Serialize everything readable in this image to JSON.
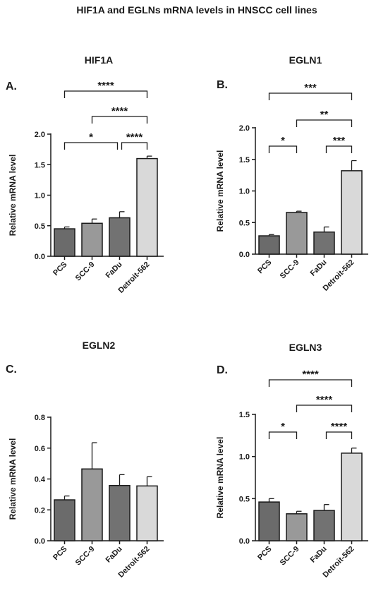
{
  "figure_title": "HIF1A and EGLNs mRNA levels in HNSCC cell lines",
  "colors": {
    "PCS": "#6b6b6b",
    "SCC-9": "#999999",
    "FaDu": "#727272",
    "Detroit-562": "#d9d9d9"
  },
  "chart_data": [
    {
      "type": "bar",
      "panel": "A.",
      "title": "HIF1A",
      "ylabel": "Relative mRNA level",
      "categories": [
        "PCS",
        "SCC-9",
        "FaDu",
        "Detroit-562"
      ],
      "values": [
        0.45,
        0.54,
        0.63,
        1.6
      ],
      "errors": [
        0.03,
        0.07,
        0.1,
        0.04
      ],
      "ylim": [
        0,
        2.0
      ],
      "yticks": [
        "0.0",
        "0.5",
        "1.0",
        "1.5",
        "2.0"
      ],
      "significance": [
        {
          "from": 0,
          "to": 3,
          "label": "****"
        },
        {
          "from": 1,
          "to": 3,
          "label": "****"
        },
        {
          "from": 0,
          "to": 2,
          "label": "*"
        },
        {
          "from": 2,
          "to": 3,
          "label": "****"
        }
      ]
    },
    {
      "type": "bar",
      "panel": "B.",
      "title": "EGLN1",
      "ylabel": "Relative mRNA level",
      "categories": [
        "PCS",
        "SCC-9",
        "FaDu",
        "Detroit-562"
      ],
      "values": [
        0.29,
        0.66,
        0.35,
        1.32
      ],
      "errors": [
        0.02,
        0.02,
        0.08,
        0.16
      ],
      "ylim": [
        0,
        2.0
      ],
      "yticks": [
        "0.0",
        "0.5",
        "1.0",
        "1.5",
        "2.0"
      ],
      "significance": [
        {
          "from": 0,
          "to": 3,
          "label": "***"
        },
        {
          "from": 1,
          "to": 3,
          "label": "**"
        },
        {
          "from": 0,
          "to": 1,
          "label": "*"
        },
        {
          "from": 2,
          "to": 3,
          "label": "***"
        }
      ]
    },
    {
      "type": "bar",
      "panel": "C.",
      "title": "EGLN2",
      "ylabel": "Relative mRNA level",
      "categories": [
        "PCS",
        "SCC-9",
        "FaDu",
        "Detroit-562"
      ],
      "values": [
        0.265,
        0.465,
        0.358,
        0.355
      ],
      "errors": [
        0.025,
        0.17,
        0.07,
        0.06
      ],
      "ylim": [
        0,
        0.8
      ],
      "yticks": [
        "0.0",
        "0.2",
        "0.4",
        "0.6",
        "0.8"
      ],
      "significance": []
    },
    {
      "type": "bar",
      "panel": "D.",
      "title": "EGLN3",
      "ylabel": "Relative mRNA level",
      "categories": [
        "PCS",
        "SCC-9",
        "FaDu",
        "Detroit-562"
      ],
      "values": [
        0.46,
        0.32,
        0.36,
        1.04
      ],
      "errors": [
        0.04,
        0.03,
        0.07,
        0.06
      ],
      "ylim": [
        0,
        1.5
      ],
      "yticks": [
        "0.0",
        "0.5",
        "1.0",
        "1.5"
      ],
      "significance": [
        {
          "from": 0,
          "to": 3,
          "label": "****"
        },
        {
          "from": 1,
          "to": 3,
          "label": "****"
        },
        {
          "from": 0,
          "to": 1,
          "label": "*"
        },
        {
          "from": 2,
          "to": 3,
          "label": "****"
        }
      ]
    }
  ]
}
